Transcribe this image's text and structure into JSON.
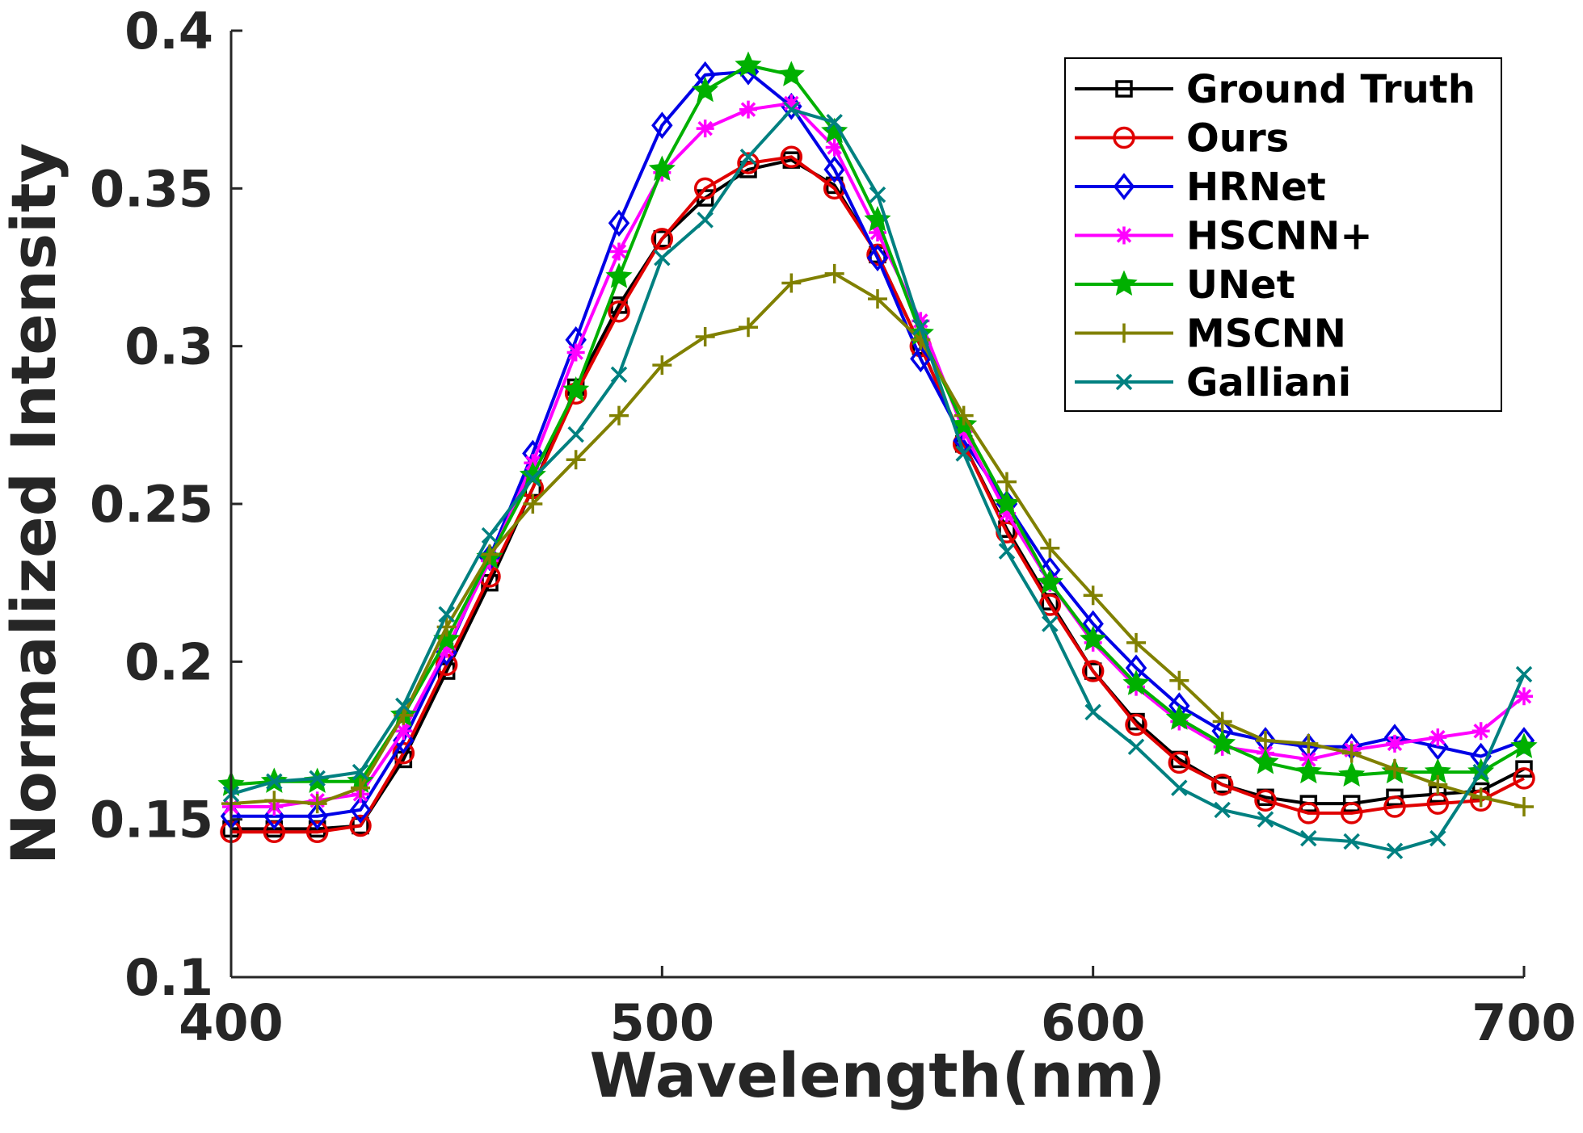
{
  "chart_data": {
    "type": "line",
    "title": "",
    "xlabel": "Wavelength(nm)",
    "ylabel": "Normalized Intensity",
    "xlim": [
      400,
      700
    ],
    "ylim": [
      0.1,
      0.4
    ],
    "xticks": [
      400,
      500,
      600,
      700
    ],
    "xtick_labels": [
      "400",
      "500",
      "600",
      "700"
    ],
    "yticks": [
      0.1,
      0.15,
      0.2,
      0.25,
      0.3,
      0.35,
      0.4
    ],
    "ytick_labels": [
      "0.1",
      "0.15",
      "0.2",
      "0.25",
      "0.3",
      "0.35",
      "0.4"
    ],
    "grid": false,
    "legend_position": "top-right",
    "x": [
      400,
      410,
      420,
      430,
      440,
      450,
      460,
      470,
      480,
      490,
      500,
      510,
      520,
      530,
      540,
      550,
      560,
      570,
      580,
      590,
      600,
      610,
      620,
      630,
      640,
      650,
      660,
      670,
      680,
      690,
      700
    ],
    "series": [
      {
        "name": "Ground Truth",
        "color": "#000000",
        "marker": "square",
        "values": [
          0.147,
          0.147,
          0.147,
          0.148,
          0.169,
          0.197,
          0.225,
          0.255,
          0.287,
          0.313,
          0.334,
          0.347,
          0.356,
          0.359,
          0.351,
          0.329,
          0.3,
          0.269,
          0.242,
          0.219,
          0.197,
          0.181,
          0.169,
          0.161,
          0.157,
          0.155,
          0.155,
          0.157,
          0.158,
          0.159,
          0.166
        ]
      },
      {
        "name": "Ours",
        "color": "#e00000",
        "marker": "circle",
        "values": [
          0.146,
          0.146,
          0.146,
          0.148,
          0.171,
          0.199,
          0.227,
          0.255,
          0.285,
          0.311,
          0.334,
          0.35,
          0.358,
          0.36,
          0.35,
          0.329,
          0.3,
          0.269,
          0.241,
          0.218,
          0.197,
          0.18,
          0.168,
          0.161,
          0.156,
          0.152,
          0.152,
          0.154,
          0.155,
          0.156,
          0.163
        ]
      },
      {
        "name": "HRNet",
        "color": "#0000e6",
        "marker": "diamond",
        "values": [
          0.151,
          0.151,
          0.151,
          0.153,
          0.175,
          0.203,
          0.233,
          0.266,
          0.302,
          0.339,
          0.37,
          0.386,
          0.387,
          0.376,
          0.356,
          0.328,
          0.296,
          0.27,
          0.25,
          0.229,
          0.212,
          0.198,
          0.186,
          0.178,
          0.175,
          0.173,
          0.173,
          0.176,
          0.173,
          0.17,
          0.175
        ]
      },
      {
        "name": "HSCNN+",
        "color": "#ff00ff",
        "marker": "asterisk",
        "values": [
          0.154,
          0.154,
          0.156,
          0.158,
          0.178,
          0.204,
          0.232,
          0.263,
          0.298,
          0.33,
          0.355,
          0.369,
          0.375,
          0.377,
          0.363,
          0.336,
          0.308,
          0.273,
          0.247,
          0.225,
          0.206,
          0.192,
          0.181,
          0.173,
          0.171,
          0.169,
          0.172,
          0.174,
          0.176,
          0.178,
          0.189
        ]
      },
      {
        "name": "UNet",
        "color": "#00b000",
        "marker": "star",
        "values": [
          0.161,
          0.162,
          0.162,
          0.162,
          0.183,
          0.207,
          0.233,
          0.259,
          0.286,
          0.322,
          0.356,
          0.381,
          0.389,
          0.386,
          0.368,
          0.34,
          0.304,
          0.275,
          0.25,
          0.225,
          0.207,
          0.193,
          0.182,
          0.174,
          0.168,
          0.165,
          0.164,
          0.165,
          0.165,
          0.165,
          0.173
        ]
      },
      {
        "name": "MSCNN",
        "color": "#808000",
        "marker": "plus",
        "values": [
          0.155,
          0.156,
          0.155,
          0.16,
          0.183,
          0.211,
          0.234,
          0.25,
          0.264,
          0.278,
          0.294,
          0.303,
          0.306,
          0.32,
          0.323,
          0.315,
          0.302,
          0.278,
          0.257,
          0.236,
          0.221,
          0.206,
          0.194,
          0.181,
          0.175,
          0.174,
          0.171,
          0.166,
          0.161,
          0.157,
          0.154
        ]
      },
      {
        "name": "Galliani",
        "color": "#008080",
        "marker": "x",
        "values": [
          0.158,
          0.162,
          0.163,
          0.165,
          0.186,
          0.215,
          0.24,
          0.258,
          0.272,
          0.291,
          0.328,
          0.34,
          0.36,
          0.375,
          0.371,
          0.348,
          0.306,
          0.266,
          0.235,
          0.212,
          0.184,
          0.173,
          0.16,
          0.153,
          0.15,
          0.144,
          0.143,
          0.14,
          0.144,
          0.165,
          0.196
        ]
      }
    ]
  }
}
